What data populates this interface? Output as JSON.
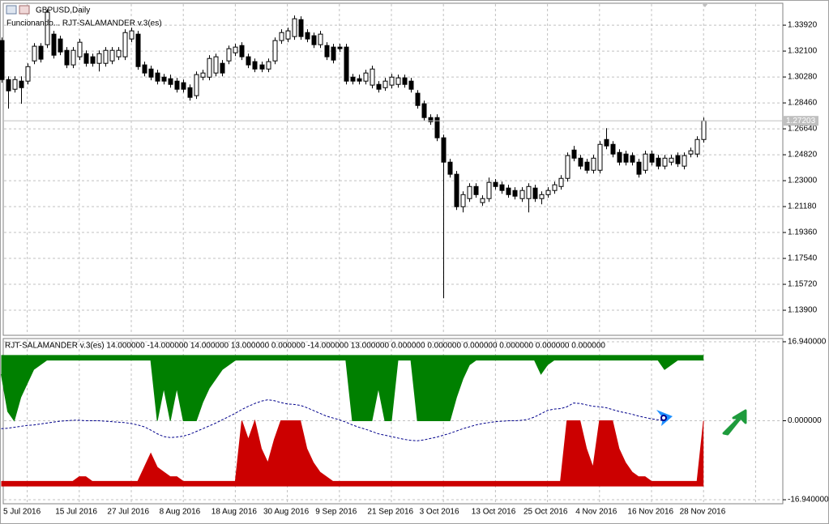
{
  "chart_data": [
    {
      "type": "candlestick",
      "title": "GBPUSD,Daily",
      "subtitle": "Funcionando... RJT-SALAMANDER v.3(es)",
      "open": [
        1.3284,
        1.301,
        1.2942,
        1.2999,
        1.2999,
        1.3141,
        1.3244,
        1.3255,
        1.3329,
        1.3295,
        1.3215,
        1.3113,
        1.317,
        1.3192,
        1.317,
        1.3124,
        1.3124,
        1.3141,
        1.317,
        1.317,
        1.3295,
        1.3329,
        1.3113,
        1.3084,
        1.3056,
        1.3027,
        1.3016,
        1.2999,
        1.2988,
        1.2953,
        1.2897,
        1.3027,
        1.3027,
        1.3056,
        1.3124,
        1.3141,
        1.3198,
        1.3249,
        1.317,
        1.3136,
        1.3113,
        1.3084,
        1.3141,
        1.3284,
        1.3295,
        1.3312,
        1.3431,
        1.334,
        1.3318,
        1.3255,
        1.3249,
        1.3238,
        1.3238,
        1.3238,
        1.3027,
        1.3016,
        1.2999,
        1.2971,
        1.2976,
        1.2953,
        1.2971,
        1.2976,
        1.3022,
        1.2999,
        1.2914,
        1.284,
        1.2743,
        1.2743,
        1.2601,
        1.243,
        1.2345,
        1.2117,
        1.2174,
        1.2259,
        1.2146,
        1.2174,
        1.2288,
        1.2271,
        1.2248,
        1.2231,
        1.2174,
        1.2174,
        1.2248,
        1.2174,
        1.2202,
        1.2231,
        1.2259,
        1.2316,
        1.2515,
        1.2458,
        1.243,
        1.2373,
        1.2373,
        1.2589,
        1.2555,
        1.2498,
        1.2487,
        1.2476,
        1.243,
        1.2373,
        1.2487,
        1.2458,
        1.2402,
        1.243,
        1.2476,
        1.2402,
        1.2487,
        1.2487,
        1.2589
      ],
      "high": [
        1.3306,
        1.3033,
        1.3033,
        1.3033,
        1.3124,
        1.3266,
        1.3266,
        1.3505,
        1.3352,
        1.3318,
        1.3238,
        1.3238,
        1.3295,
        1.3215,
        1.3192,
        1.3215,
        1.3238,
        1.3238,
        1.3238,
        1.3363,
        1.3375,
        1.3352,
        1.3136,
        1.3107,
        1.3079,
        1.305,
        1.3045,
        1.3022,
        1.301,
        1.2976,
        1.3067,
        1.3079,
        1.3181,
        1.3192,
        1.3147,
        1.3249,
        1.3261,
        1.3272,
        1.3192,
        1.3158,
        1.3136,
        1.3158,
        1.3306,
        1.3363,
        1.3375,
        1.346,
        1.3454,
        1.3363,
        1.334,
        1.3352,
        1.3272,
        1.3261,
        1.3261,
        1.3261,
        1.305,
        1.3045,
        1.3079,
        1.3107,
        1.2999,
        1.3022,
        1.305,
        1.3045,
        1.3045,
        1.3022,
        1.2936,
        1.2862,
        1.2766,
        1.2766,
        1.2623,
        1.2453,
        1.2368,
        1.2225,
        1.2282,
        1.2282,
        1.2197,
        1.2322,
        1.2311,
        1.2293,
        1.2271,
        1.2254,
        1.2254,
        1.2282,
        1.2271,
        1.2225,
        1.2254,
        1.2293,
        1.2339,
        1.2498,
        1.2544,
        1.2481,
        1.2453,
        1.2481,
        1.2578,
        1.2669,
        1.2578,
        1.2521,
        1.251,
        1.2498,
        1.2453,
        1.251,
        1.251,
        1.2481,
        1.2481,
        1.2481,
        1.2498,
        1.2498,
        1.2532,
        1.2612,
        1.2743
      ],
      "low": [
        1.2988,
        1.2806,
        1.2919,
        1.284,
        1.2976,
        1.3118,
        1.313,
        1.3232,
        1.3158,
        1.3181,
        1.309,
        1.309,
        1.3147,
        1.3101,
        1.3101,
        1.3067,
        1.3101,
        1.3118,
        1.3147,
        1.3147,
        1.3272,
        1.3079,
        1.3033,
        1.3005,
        1.2976,
        1.2976,
        1.2953,
        1.2919,
        1.2919,
        1.2862,
        1.2874,
        1.3005,
        1.3005,
        1.3033,
        1.3033,
        1.3118,
        1.3175,
        1.3147,
        1.309,
        1.3062,
        1.3062,
        1.3062,
        1.3118,
        1.3261,
        1.3272,
        1.3289,
        1.3289,
        1.3272,
        1.3232,
        1.3232,
        1.3147,
        1.3124,
        1.3204,
        1.2976,
        1.2976,
        1.2976,
        1.2976,
        1.2948,
        1.2919,
        1.2931,
        1.2948,
        1.2953,
        1.2953,
        1.2919,
        1.2806,
        1.272,
        1.2692,
        1.2578,
        1.1474,
        1.2322,
        1.2094,
        1.2077,
        1.2151,
        1.218,
        1.2123,
        1.2151,
        1.2237,
        1.2208,
        1.218,
        1.2168,
        1.2151,
        1.2077,
        1.2151,
        1.2134,
        1.218,
        1.2208,
        1.2237,
        1.2293,
        1.2436,
        1.2379,
        1.235,
        1.235,
        1.235,
        1.2521,
        1.2464,
        1.2407,
        1.2407,
        1.2407,
        1.2322,
        1.235,
        1.2407,
        1.2379,
        1.2379,
        1.2407,
        1.2396,
        1.2379,
        1.2464,
        1.2464,
        1.2567
      ],
      "close": [
        1.301,
        1.2931,
        1.301,
        1.2953,
        1.3101,
        1.3244,
        1.3153,
        1.3483,
        1.3181,
        1.3204,
        1.3113,
        1.3215,
        1.3272,
        1.3124,
        1.3124,
        1.3192,
        1.3215,
        1.3215,
        1.3215,
        1.334,
        1.3352,
        1.3101,
        1.3056,
        1.3027,
        1.2999,
        1.2999,
        1.2976,
        1.2942,
        1.2942,
        1.2885,
        1.3045,
        1.3056,
        1.3158,
        1.317,
        1.3056,
        1.3227,
        1.3238,
        1.317,
        1.3113,
        1.3084,
        1.3084,
        1.3136,
        1.3284,
        1.334,
        1.3352,
        1.3437,
        1.3312,
        1.3295,
        1.3255,
        1.3329,
        1.317,
        1.3147,
        1.3227,
        1.2999,
        1.2999,
        1.2999,
        1.3056,
        1.3084,
        1.2942,
        1.2999,
        1.3027,
        1.3022,
        1.2976,
        1.2942,
        1.2828,
        1.2743,
        1.2714,
        1.2601,
        1.243,
        1.2345,
        1.2117,
        1.2202,
        1.2259,
        1.2202,
        1.2174,
        1.2288,
        1.2259,
        1.2231,
        1.2202,
        1.2191,
        1.2231,
        1.2259,
        1.2174,
        1.2202,
        1.2231,
        1.2271,
        1.2316,
        1.2476,
        1.2458,
        1.2402,
        1.2373,
        1.2458,
        1.2555,
        1.2544,
        1.2487,
        1.243,
        1.243,
        1.243,
        1.2345,
        1.2487,
        1.243,
        1.2402,
        1.2458,
        1.2458,
        1.2419,
        1.2476,
        1.251,
        1.2589,
        1.272
      ],
      "up_color": "#ffffff",
      "down_color": "#000000",
      "current_price": 1.27203,
      "ylim": [
        1.1214,
        1.3546
      ],
      "yticks": [
        {
          "value": 1.3392,
          "label": "1.33920"
        },
        {
          "value": 1.321,
          "label": "1.32100"
        },
        {
          "value": 1.3028,
          "label": "1.30280"
        },
        {
          "value": 1.2846,
          "label": "1.28460"
        },
        {
          "value": 1.2664,
          "label": "1.26640"
        },
        {
          "value": 1.2482,
          "label": "1.24820"
        },
        {
          "value": 1.23,
          "label": "1.23000"
        },
        {
          "value": 1.2118,
          "label": "1.21180"
        },
        {
          "value": 1.1936,
          "label": "1.19360"
        },
        {
          "value": 1.1754,
          "label": "1.17540"
        },
        {
          "value": 1.1572,
          "label": "1.15720"
        },
        {
          "value": 1.139,
          "label": "1.13900"
        }
      ],
      "grid": true
    },
    {
      "type": "band",
      "title": "RJT-SALAMANDER v.3(es) 14.000000 -14.000000 14.000000 13.000000 0.000000 -14.000000 13.000000 0.000000 0.000000 0.000000 0.000000 0.000000 0.000000",
      "categories": [
        "5 Jul 2016",
        null,
        null,
        null,
        null,
        null,
        null,
        null,
        "15 Jul 2016",
        null,
        null,
        null,
        null,
        null,
        null,
        null,
        "27 Jul 2016",
        null,
        null,
        null,
        null,
        null,
        null,
        null,
        "8 Aug 2016",
        null,
        null,
        null,
        null,
        null,
        null,
        null,
        "18 Aug 2016",
        null,
        null,
        null,
        null,
        null,
        null,
        null,
        "30 Aug 2016",
        null,
        null,
        null,
        null,
        null,
        null,
        null,
        "9 Sep 2016",
        null,
        null,
        null,
        null,
        null,
        null,
        null,
        "21 Sep 2016",
        null,
        null,
        null,
        null,
        null,
        null,
        null,
        "3 Oct 2016",
        null,
        null,
        null,
        null,
        null,
        null,
        null,
        "13 Oct 2016",
        null,
        null,
        null,
        null,
        null,
        null,
        null,
        "25 Oct 2016",
        null,
        null,
        null,
        null,
        null,
        null,
        null,
        "4 Nov 2016",
        null,
        null,
        null,
        null,
        null,
        null,
        null,
        "16 Nov 2016",
        null,
        null,
        null,
        null,
        null,
        null,
        null,
        "28 Nov 2016",
        null,
        null,
        null,
        null
      ],
      "series": [
        {
          "color": "#008000",
          "fill_to": 14,
          "values": [
            10,
            2,
            0,
            5,
            8,
            11,
            12,
            13,
            13,
            13,
            13,
            13,
            13,
            13,
            13,
            13,
            13,
            13,
            13,
            13,
            13,
            13,
            13,
            13,
            0,
            7,
            0,
            7,
            0,
            0,
            0,
            4,
            7,
            9,
            11,
            12,
            13,
            13,
            13,
            13,
            13,
            13,
            13,
            13,
            13,
            13,
            13,
            13,
            13,
            13,
            13,
            13,
            13,
            13,
            0,
            0,
            0,
            0,
            7,
            0,
            0,
            13,
            13,
            13,
            0,
            0,
            0,
            0,
            0,
            0,
            5,
            9,
            12,
            13,
            13,
            13,
            13,
            13,
            13,
            13,
            13,
            13,
            13,
            10,
            12,
            13,
            13,
            13,
            13,
            13,
            13,
            13,
            13,
            13,
            13,
            13,
            13,
            13,
            13,
            13,
            13,
            13,
            11,
            12,
            13,
            13,
            13,
            13,
            13
          ]
        },
        {
          "color": "#cc0000",
          "fill_to": -14,
          "values": [
            -13,
            -13,
            -13,
            -13,
            -13,
            -13,
            -13,
            -13,
            -13,
            -13,
            -13,
            -13,
            -12,
            -12,
            -13,
            -13,
            -13,
            -13,
            -13,
            -13,
            -13,
            -13,
            -10,
            -7,
            -10,
            -11,
            -12,
            -12,
            -13,
            -13,
            -13,
            -13,
            -13,
            -13,
            -13,
            -13,
            -13,
            0,
            -4,
            0,
            -6,
            -9,
            -4,
            0,
            0,
            0,
            0,
            -6,
            -9,
            -11,
            -12,
            -13,
            -13,
            -13,
            -13,
            -13,
            -13,
            -13,
            -13,
            -13,
            -13,
            -13,
            -13,
            -13,
            -13,
            -13,
            -13,
            -13,
            -13,
            -13,
            -13,
            -13,
            -13,
            -13,
            -13,
            -13,
            -13,
            -13,
            -13,
            -13,
            -13,
            -13,
            -13,
            -13,
            -13,
            -13,
            -13,
            0,
            0,
            0,
            -6,
            -10,
            0,
            0,
            0,
            -6,
            -9,
            -11,
            -12,
            -12,
            -13,
            -13,
            -13,
            -13,
            -13,
            -13,
            -13,
            -13,
            0
          ]
        },
        {
          "color": "#00008b",
          "dashed": true,
          "values": [
            -1.7,
            -1.6,
            -1.4,
            -1.2,
            -1.0,
            -0.9,
            -0.7,
            -0.5,
            -0.3,
            -0.1,
            0,
            0.1,
            0.1,
            0,
            0,
            0,
            -0.1,
            -0.2,
            -0.3,
            -0.4,
            -0.6,
            -0.9,
            -1.3,
            -2.0,
            -2.8,
            -3.4,
            -3.6,
            -3.5,
            -3.3,
            -2.9,
            -2.3,
            -1.7,
            -1.1,
            -0.5,
            0.2,
            0.9,
            1.6,
            2.4,
            3.1,
            3.7,
            4.2,
            4.5,
            4.3,
            3.9,
            3.6,
            3.5,
            3.3,
            2.8,
            2.2,
            1.6,
            1.0,
            0.6,
            0.2,
            -0.3,
            -0.9,
            -1.4,
            -1.8,
            -2.3,
            -2.8,
            -3.1,
            -3.4,
            -3.7,
            -4.0,
            -4.2,
            -4.3,
            -4.1,
            -3.8,
            -3.5,
            -3.1,
            -2.7,
            -2.2,
            -1.7,
            -1.3,
            -0.9,
            -0.6,
            -0.4,
            -0.2,
            -0.1,
            0,
            0,
            0.1,
            0.3,
            0.8,
            1.5,
            2.2,
            2.5,
            2.6,
            3.0,
            3.8,
            3.7,
            3.4,
            3.1,
            3.0,
            2.8,
            2.4,
            2.0,
            1.7,
            1.4,
            1.0,
            0.7,
            0.4,
            0.2,
            0,
            null,
            null,
            null,
            null,
            null,
            null
          ]
        }
      ],
      "ylim": [
        -17.8,
        17.63
      ],
      "yticks": [
        {
          "value": 16.94,
          "label": "16.940000"
        },
        {
          "value": 0,
          "label": "0.000000"
        },
        {
          "value": -16.94,
          "label": "-16.940000"
        }
      ],
      "grid": true
    }
  ]
}
